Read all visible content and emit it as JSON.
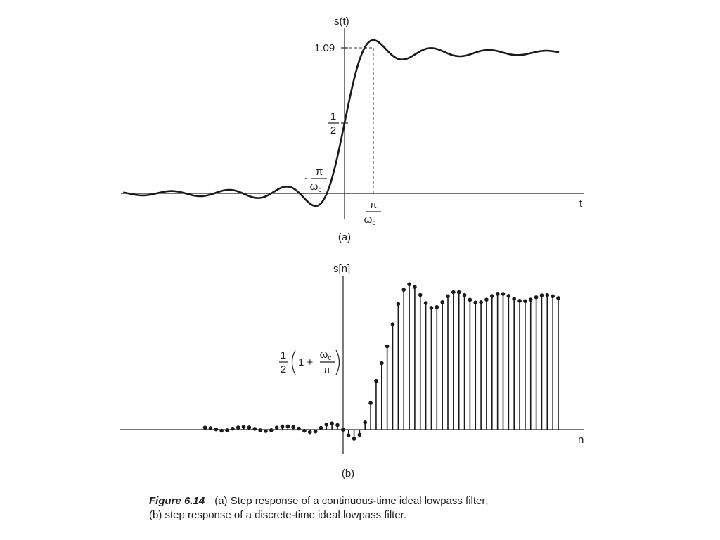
{
  "chart_data": [
    {
      "type": "line",
      "panel_label": "(a)",
      "ylabel": "s(t)",
      "xlabel": "t",
      "peak_label": "1.09",
      "half_label": {
        "num": "1",
        "den": "2"
      },
      "neg_tick": {
        "sign": "-",
        "num": "π",
        "den": "ω",
        "den_sub": "c"
      },
      "pos_tick": {
        "num": "π",
        "den": "ω",
        "den_sub": "c"
      },
      "xlim": [
        -3.2,
        3.4
      ],
      "ylim": [
        -0.12,
        1.12
      ],
      "grid": false,
      "function": "0.5 + Si(pi*t)/pi",
      "peak": {
        "x": 1,
        "y": 1.09
      }
    },
    {
      "type": "stem",
      "panel_label": "(b)",
      "ylabel": "s[n]",
      "xlabel": "n",
      "level_label": {
        "num": "1",
        "den": "2",
        "inner": "1 +",
        "frac_num": "ω",
        "frac_num_sub": "c",
        "frac_den": "π"
      },
      "n": [
        -25,
        -24,
        -23,
        -22,
        -21,
        -20,
        -19,
        -18,
        -17,
        -16,
        -15,
        -14,
        -13,
        -12,
        -11,
        -10,
        -9,
        -8,
        -7,
        -6,
        -5,
        -4,
        -3,
        -2,
        -1,
        0,
        1,
        2,
        3,
        4,
        5,
        6,
        7,
        8,
        9,
        10,
        11,
        12,
        13,
        14,
        15,
        16,
        17,
        18,
        19,
        20,
        21,
        22,
        23,
        24,
        25,
        26,
        27,
        28,
        29,
        30,
        31,
        32,
        33,
        34,
        35,
        36,
        37,
        38,
        39
      ],
      "values": [
        0.015,
        0.011,
        0.002,
        -0.008,
        -0.005,
        0.007,
        0.016,
        0.021,
        0.016,
        0.006,
        -0.005,
        -0.011,
        -0.004,
        0.015,
        0.024,
        0.025,
        0.02,
        0.008,
        -0.009,
        -0.019,
        -0.014,
        0.013,
        0.038,
        0.047,
        0.034,
        -0.001,
        -0.043,
        -0.069,
        -0.039,
        0.054,
        0.2,
        0.367,
        0.5,
        0.627,
        0.793,
        0.945,
        1.052,
        1.094,
        1.073,
        1.013,
        0.952,
        0.916,
        0.922,
        0.959,
        1.004,
        1.034,
        1.034,
        1.012,
        0.977,
        0.956,
        0.958,
        0.978,
        1.005,
        1.022,
        1.021,
        1.006,
        0.985,
        0.969,
        0.967,
        0.978,
        0.996,
        1.01,
        1.012,
        1.004,
        0.99
      ],
      "xlim": [
        -26,
        40
      ],
      "ylim": [
        -0.12,
        1.12
      ],
      "grid": false
    }
  ],
  "caption": {
    "figure_number": "Figure 6.14",
    "line1": "(a) Step response of a continuous-time ideal lowpass filter;",
    "line2": "(b) step response of a discrete-time ideal lowpass filter."
  }
}
